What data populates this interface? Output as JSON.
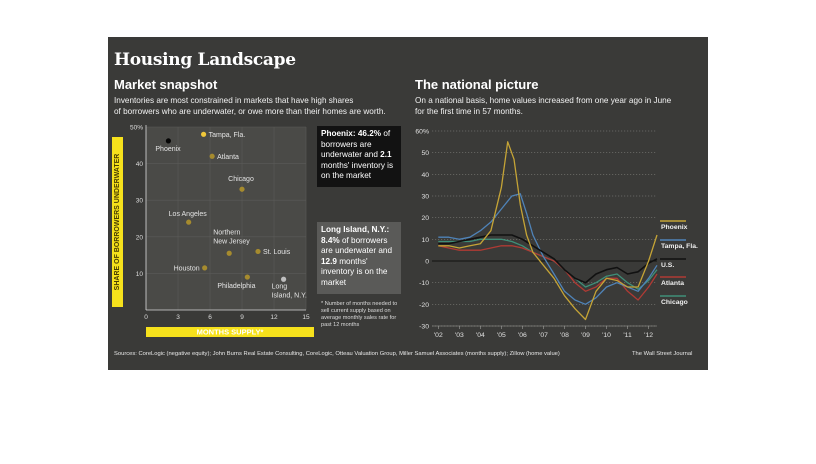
{
  "page": {
    "title": "Housing Landscape",
    "sources": "Sources: CoreLogic (negative equity); John Burns Real Estate Consulting, CoreLogic, Otteau Valuation Group, Miller Samuel Associates (months supply); Zillow (home value)",
    "credit": "The Wall Street Journal"
  },
  "left": {
    "title": "Market snapshot",
    "description_line1": "Inventories are most constrained in markets that have high shares",
    "description_line2": "of borrowers who are underwater, or owe more than their homes are worth.",
    "phoenix_callout": {
      "name": "Phoenix:",
      "pct": "46.2%",
      "mid": " of borrowers are underwater and ",
      "months": "2.1",
      "tail": " months' inventory is on the market"
    },
    "li_callout": {
      "name": "Long Island, N.Y.:",
      "pct": "8.4%",
      "mid": " of borrowers are underwater and ",
      "months": "12.9",
      "tail": " months' inventory is on the market"
    },
    "footnote": "* Number of months needed to sell current supply based on average monthly sales rate for past 12 months"
  },
  "right": {
    "title": "The national picture",
    "description_line1": "On a national basis, home values increased from one year ago in June",
    "description_line2": "for the first time in 57 months."
  },
  "colors": {
    "background": "#3a3a38",
    "gold": "#c5a436",
    "tampa": "#4f83b8",
    "us": "#111111",
    "atlanta": "#b03a34",
    "chicago": "#3f8f78",
    "highlight": "#f6e11c"
  },
  "chart_data": [
    {
      "type": "scatter",
      "title": "Market snapshot",
      "xlabel": "MONTHS SUPPLY*",
      "ylabel": "SHARE OF BORROWERS UNDERWATER",
      "xlim": [
        0,
        15
      ],
      "ylim": [
        0,
        50
      ],
      "xticks": [
        "0",
        "3",
        "6",
        "9",
        "12",
        "15"
      ],
      "yticks": [
        "10",
        "20",
        "30",
        "40",
        "50%"
      ],
      "grid": true,
      "points": [
        {
          "label": "Phoenix",
          "x": 2.1,
          "y": 46.2
        },
        {
          "label": "Tampa, Fla.",
          "x": 5.4,
          "y": 48
        },
        {
          "label": "Atlanta",
          "x": 6.2,
          "y": 42
        },
        {
          "label": "Chicago",
          "x": 9.0,
          "y": 33
        },
        {
          "label": "Los Angeles",
          "x": 4.0,
          "y": 24
        },
        {
          "label": "Northern New Jersey",
          "x": 7.8,
          "y": 15.5
        },
        {
          "label": "St. Louis",
          "x": 10.5,
          "y": 16
        },
        {
          "label": "Houston",
          "x": 5.5,
          "y": 11.5
        },
        {
          "label": "Philadelphia",
          "x": 9.5,
          "y": 9
        },
        {
          "label": "Long Island, N.Y.",
          "x": 12.9,
          "y": 8.4
        }
      ]
    },
    {
      "type": "line",
      "title": "The national picture",
      "xlim": [
        2001.7,
        2012.4
      ],
      "ylim": [
        -30,
        60
      ],
      "yticks": [
        "60%",
        "50",
        "40",
        "30",
        "20",
        "10",
        "0",
        "-10",
        "-20",
        "-30"
      ],
      "xticks": [
        "'02",
        "'03",
        "'04",
        "'05",
        "'06",
        "'07",
        "'08",
        "'09",
        "'10",
        "'11",
        "'12"
      ],
      "series": [
        {
          "name": "Phoenix",
          "x": [
            2002,
            2002.5,
            2003,
            2003.5,
            2004,
            2004.5,
            2005,
            2005.3,
            2005.6,
            2005.9,
            2006.2,
            2006.5,
            2007,
            2007.5,
            2008,
            2008.5,
            2009,
            2009.5,
            2010,
            2010.5,
            2011,
            2011.5,
            2012,
            2012.4
          ],
          "y": [
            7,
            7,
            6,
            7,
            8,
            14,
            34,
            55,
            47,
            26,
            12,
            4,
            -2,
            -8,
            -16,
            -22,
            -27,
            -14,
            -8,
            -9,
            -12,
            -12,
            0,
            12
          ]
        },
        {
          "name": "Tampa, Fla.",
          "x": [
            2002,
            2002.5,
            2003,
            2003.5,
            2004,
            2004.5,
            2005,
            2005.5,
            2005.9,
            2006.2,
            2006.5,
            2007,
            2007.5,
            2008,
            2008.5,
            2009,
            2009.5,
            2010,
            2010.5,
            2011,
            2011.5,
            2012,
            2012.4
          ],
          "y": [
            11,
            11,
            10,
            11,
            14,
            18,
            24,
            30,
            31,
            22,
            12,
            2,
            -6,
            -14,
            -18,
            -20,
            -17,
            -12,
            -10,
            -12,
            -14,
            -8,
            -2
          ]
        },
        {
          "name": "U.S.",
          "x": [
            2002,
            2002.5,
            2003,
            2003.5,
            2004,
            2004.5,
            2005,
            2005.5,
            2006,
            2006.5,
            2007,
            2007.5,
            2008,
            2008.5,
            2009,
            2009.5,
            2010,
            2010.5,
            2011,
            2011.5,
            2012,
            2012.4
          ],
          "y": [
            8,
            8,
            9,
            10,
            11,
            12,
            12,
            12,
            10,
            7,
            4,
            1,
            -4,
            -8,
            -10,
            -6,
            -4,
            -3,
            -6,
            -5,
            -1,
            1
          ]
        },
        {
          "name": "Atlanta",
          "x": [
            2002,
            2002.5,
            2003,
            2003.5,
            2004,
            2004.5,
            2005,
            2005.5,
            2006,
            2006.5,
            2007,
            2007.5,
            2008,
            2008.5,
            2009,
            2009.5,
            2010,
            2010.5,
            2011,
            2011.5,
            2012,
            2012.4
          ],
          "y": [
            7,
            6,
            5,
            5,
            5,
            6,
            7,
            7,
            6,
            4,
            2,
            0,
            -4,
            -10,
            -14,
            -12,
            -8,
            -8,
            -14,
            -18,
            -12,
            -6
          ]
        },
        {
          "name": "Chicago",
          "x": [
            2002,
            2002.5,
            2003,
            2003.5,
            2004,
            2004.5,
            2005,
            2005.5,
            2006,
            2006.5,
            2007,
            2007.5,
            2008,
            2008.5,
            2009,
            2009.5,
            2010,
            2010.5,
            2011,
            2011.5,
            2012,
            2012.4
          ],
          "y": [
            9,
            9,
            9,
            9,
            10,
            10,
            10,
            9,
            7,
            4,
            2,
            0,
            -4,
            -8,
            -12,
            -10,
            -7,
            -6,
            -10,
            -13,
            -9,
            -4
          ]
        }
      ]
    }
  ]
}
